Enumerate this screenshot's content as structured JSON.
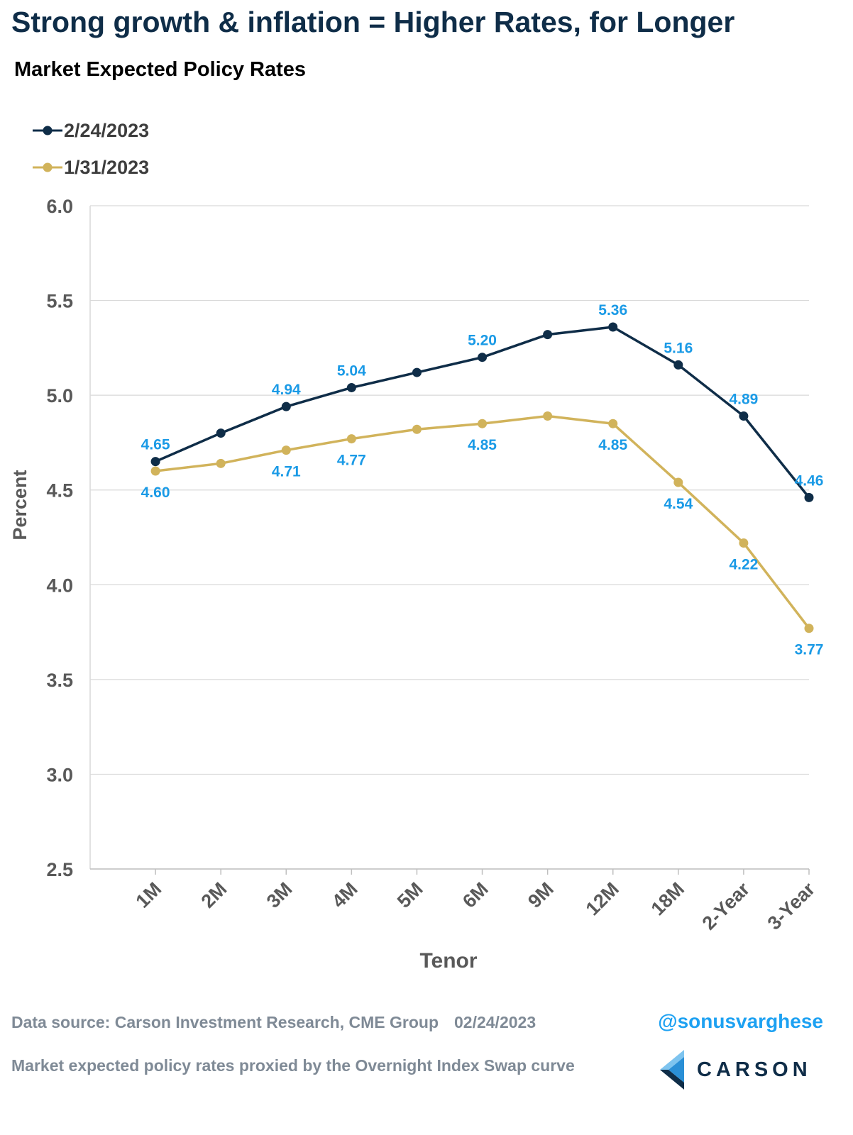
{
  "title": "Strong growth & inflation = Higher Rates, for Longer",
  "subtitle": "Market Expected Policy Rates",
  "colors": {
    "series_recent": "#0f2d48",
    "series_prior": "#d1b35b",
    "data_labels": "#1a9ae6",
    "axis_text": "#595959",
    "gridlines": "#d9d9d9"
  },
  "chart_data": {
    "type": "line",
    "categories": [
      "1M",
      "2M",
      "3M",
      "4M",
      "5M",
      "6M",
      "9M",
      "12M",
      "18M",
      "2-Year",
      "3-Year"
    ],
    "xlabel": "Tenor",
    "ylabel": "Percent",
    "ylim": [
      2.5,
      6.0
    ],
    "yticks": [
      "6.0",
      "5.5",
      "5.0",
      "4.5",
      "4.0",
      "3.5",
      "3.0",
      "2.5"
    ],
    "grid": true,
    "legend_position": "top-left",
    "series": [
      {
        "name": "2/24/2023",
        "color": "#0f2d48",
        "values": [
          4.65,
          4.8,
          4.94,
          5.04,
          5.12,
          5.2,
          5.32,
          5.36,
          5.16,
          4.89,
          4.46
        ],
        "labels": [
          "4.65",
          null,
          "4.94",
          "5.04",
          null,
          "5.20",
          null,
          "5.36",
          "5.16",
          "4.89",
          "4.46"
        ]
      },
      {
        "name": "1/31/2023",
        "color": "#d1b35b",
        "values": [
          4.6,
          4.64,
          4.71,
          4.77,
          4.82,
          4.85,
          4.89,
          4.85,
          4.54,
          4.22,
          3.77
        ],
        "labels": [
          "4.60",
          null,
          "4.71",
          "4.77",
          null,
          "4.85",
          null,
          "4.85",
          "4.54",
          "4.22",
          "3.77"
        ]
      }
    ]
  },
  "footer": {
    "source": "Data source: Carson Investment Research, CME Group",
    "date": "02/24/2023",
    "handle": "@sonusvarghese",
    "note": "Market expected policy rates proxied by the Overnight Index Swap curve",
    "logo_text": "CARSON"
  }
}
